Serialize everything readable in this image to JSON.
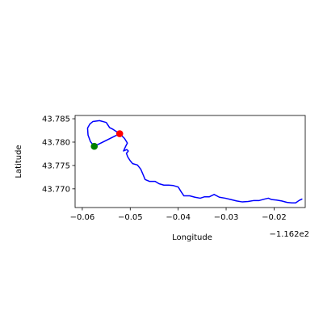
{
  "chart_data": {
    "type": "line",
    "title": "",
    "xlabel": "Longitude",
    "ylabel": "Latitude",
    "x_offset_text": "−1.162e2",
    "xlim": [
      -0.0615,
      -0.0135
    ],
    "ylim": [
      43.766,
      43.7857
    ],
    "xticks": [
      -0.06,
      -0.05,
      -0.04,
      -0.03,
      -0.02
    ],
    "xtick_labels": [
      "−0.06",
      "−0.05",
      "−0.04",
      "−0.03",
      "−0.02"
    ],
    "yticks": [
      43.77,
      43.775,
      43.78,
      43.785
    ],
    "ytick_labels": [
      "43.770",
      "43.775",
      "43.780",
      "43.785"
    ],
    "grid": false,
    "series": [
      {
        "color": "#0000ff",
        "points": [
          [
            -0.0522,
            43.7818
          ],
          [
            -0.0512,
            43.7808
          ],
          [
            -0.0506,
            43.7798
          ],
          [
            -0.051,
            43.779
          ],
          [
            -0.0514,
            43.7781
          ],
          [
            -0.0507,
            43.7784
          ],
          [
            -0.0504,
            43.7781
          ],
          [
            -0.0508,
            43.7776
          ],
          [
            -0.0505,
            43.7768
          ],
          [
            -0.05,
            43.776
          ],
          [
            -0.0495,
            43.7754
          ],
          [
            -0.0485,
            43.7751
          ],
          [
            -0.0478,
            43.7742
          ],
          [
            -0.0473,
            43.773
          ],
          [
            -0.0469,
            43.772
          ],
          [
            -0.046,
            43.7716
          ],
          [
            -0.0448,
            43.7716
          ],
          [
            -0.044,
            43.7711
          ],
          [
            -0.043,
            43.7708
          ],
          [
            -0.042,
            43.7708
          ],
          [
            -0.041,
            43.7707
          ],
          [
            -0.04,
            43.7704
          ],
          [
            -0.0394,
            43.7694
          ],
          [
            -0.0388,
            43.7685
          ],
          [
            -0.0376,
            43.7685
          ],
          [
            -0.0365,
            43.7682
          ],
          [
            -0.0354,
            43.768
          ],
          [
            -0.0345,
            43.7683
          ],
          [
            -0.0335,
            43.7683
          ],
          [
            -0.0325,
            43.7688
          ],
          [
            -0.0314,
            43.7682
          ],
          [
            -0.0302,
            43.768
          ],
          [
            -0.029,
            43.7677
          ],
          [
            -0.0278,
            43.7674
          ],
          [
            -0.0266,
            43.7672
          ],
          [
            -0.0254,
            43.7673
          ],
          [
            -0.0242,
            43.7675
          ],
          [
            -0.0231,
            43.7675
          ],
          [
            -0.022,
            43.7678
          ],
          [
            -0.0212,
            43.768
          ],
          [
            -0.0205,
            43.7677
          ],
          [
            -0.0195,
            43.7676
          ],
          [
            -0.0184,
            43.7674
          ],
          [
            -0.0173,
            43.7671
          ],
          [
            -0.0163,
            43.767
          ],
          [
            -0.0155,
            43.767
          ],
          [
            -0.0148,
            43.7675
          ],
          [
            -0.0142,
            43.7678
          ]
        ]
      },
      {
        "color": "#0000ff",
        "points": [
          [
            -0.0575,
            43.7791
          ],
          [
            -0.0583,
            43.7801
          ],
          [
            -0.0588,
            43.7815
          ],
          [
            -0.0589,
            43.783
          ],
          [
            -0.0584,
            43.7839
          ],
          [
            -0.0578,
            43.7844
          ],
          [
            -0.0564,
            43.7846
          ],
          [
            -0.055,
            43.7842
          ],
          [
            -0.0543,
            43.7831
          ],
          [
            -0.0537,
            43.7828
          ],
          [
            -0.0522,
            43.7818
          ]
        ]
      },
      {
        "color": "#0000ff",
        "points": [
          [
            -0.0575,
            43.7791
          ],
          [
            -0.0522,
            43.7818
          ]
        ]
      }
    ],
    "markers": [
      {
        "x": -0.0522,
        "y": 43.7818,
        "color": "#ff0000"
      },
      {
        "x": -0.0575,
        "y": 43.7791,
        "color": "#008000"
      }
    ]
  }
}
